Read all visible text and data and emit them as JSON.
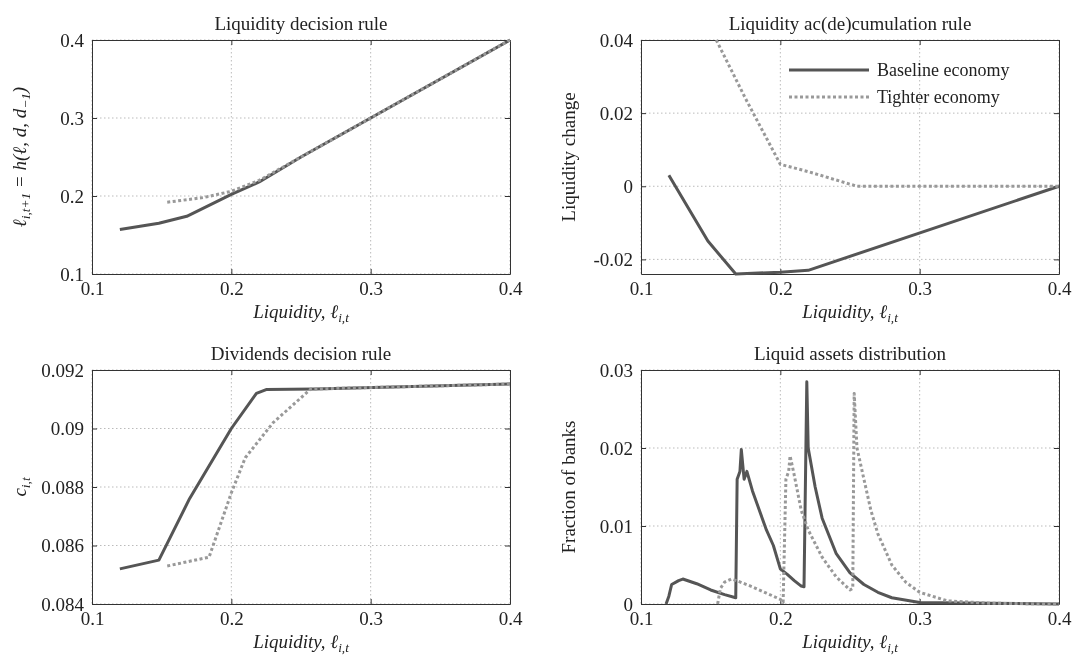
{
  "chart_data": [
    {
      "type": "line",
      "title": "Liquidity decision rule",
      "xlabel": "Liquidity, ℓ$_{i,t}$",
      "ylabel": "ℓ$_{i,t+1}$ = h(ℓ, d, d$_{−1}$)",
      "xlim": [
        0.1,
        0.4
      ],
      "xticks": [
        0.1,
        0.2,
        0.3,
        0.4
      ],
      "ylim": [
        0.1,
        0.4
      ],
      "yticks": [
        0.1,
        0.2,
        0.3,
        0.4
      ],
      "grid": true,
      "legend": false,
      "series": [
        {
          "color": "#555555",
          "line_style": "solid",
          "x": [
            0.12,
            0.148,
            0.168,
            0.2,
            0.22,
            0.25,
            0.3,
            0.4
          ],
          "values": [
            0.157,
            0.165,
            0.174,
            0.202,
            0.218,
            0.25,
            0.3,
            0.4
          ]
        },
        {
          "color": "#999999",
          "line_style": "dotted",
          "x": [
            0.154,
            0.18,
            0.2,
            0.22,
            0.25,
            0.4
          ],
          "values": [
            0.192,
            0.198,
            0.206,
            0.22,
            0.25,
            0.4
          ]
        }
      ]
    },
    {
      "type": "line",
      "title": "Liquidity ac(de)cumulation rule",
      "xlabel": "Liquidity, ℓ$_{i,t}$",
      "ylabel": "Liquidity change",
      "xlim": [
        0.1,
        0.4
      ],
      "xticks": [
        0.1,
        0.2,
        0.3,
        0.4
      ],
      "ylim": [
        -0.024,
        0.04
      ],
      "yticks": [
        -0.02,
        0,
        0.02,
        0.04
      ],
      "grid": true,
      "legend": "top right",
      "series": [
        {
          "name": "Baseline economy",
          "color": "#555555",
          "line_style": "solid",
          "x": [
            0.12,
            0.148,
            0.168,
            0.2,
            0.22,
            0.4
          ],
          "values": [
            0.003,
            -0.015,
            -0.024,
            -0.0235,
            -0.023,
            0
          ]
        },
        {
          "name": "Tighter economy",
          "color": "#999999",
          "line_style": "dotted",
          "x": [
            0.154,
            0.175,
            0.2,
            0.22,
            0.255,
            0.4
          ],
          "values": [
            0.04,
            0.024,
            0.006,
            0.004,
            0,
            0
          ]
        }
      ]
    },
    {
      "type": "line",
      "title": "Dividends decision rule",
      "xlabel": "Liquidity, ℓ$_{i,t}$",
      "ylabel": "c$_{i,t}$",
      "xlim": [
        0.1,
        0.4
      ],
      "xticks": [
        0.1,
        0.2,
        0.3,
        0.4
      ],
      "ylim": [
        0.084,
        0.092
      ],
      "yticks": [
        0.084,
        0.086,
        0.088,
        0.09,
        0.092
      ],
      "grid": true,
      "legend": false,
      "series": [
        {
          "color": "#555555",
          "line_style": "solid",
          "x": [
            0.12,
            0.148,
            0.17,
            0.2,
            0.218,
            0.225,
            0.26,
            0.4
          ],
          "values": [
            0.0852,
            0.0855,
            0.0876,
            0.09,
            0.0912,
            0.09133,
            0.09135,
            0.09152
          ]
        },
        {
          "color": "#999999",
          "line_style": "dotted",
          "x": [
            0.154,
            0.184,
            0.2,
            0.21,
            0.23,
            0.257,
            0.4
          ],
          "values": [
            0.0853,
            0.0856,
            0.0878,
            0.089,
            0.0902,
            0.09135,
            0.09152
          ]
        }
      ]
    },
    {
      "type": "line",
      "title": "Liquid assets distribution",
      "xlabel": "Liquidity, ℓ$_{i,t}$",
      "ylabel": "Fraction of banks",
      "xlim": [
        0.1,
        0.4
      ],
      "xticks": [
        0.1,
        0.2,
        0.3,
        0.4
      ],
      "ylim": [
        0,
        0.03
      ],
      "yticks": [
        0,
        0.01,
        0.02,
        0.03
      ],
      "grid": true,
      "legend": false,
      "series": [
        {
          "color": "#555555",
          "line_style": "solid",
          "x": [
            0.118,
            0.12,
            0.122,
            0.127,
            0.13,
            0.14,
            0.15,
            0.16,
            0.168,
            0.169,
            0.171,
            0.172,
            0.174,
            0.176,
            0.18,
            0.185,
            0.19,
            0.195,
            0.2,
            0.205,
            0.21,
            0.215,
            0.217,
            0.219,
            0.22,
            0.225,
            0.23,
            0.24,
            0.25,
            0.26,
            0.27,
            0.28,
            0.3,
            0.35,
            0.4
          ],
          "values": [
            0,
            0.001,
            0.0025,
            0.003,
            0.0032,
            0.0026,
            0.0018,
            0.0012,
            0.0008,
            0.016,
            0.017,
            0.0198,
            0.016,
            0.017,
            0.0145,
            0.012,
            0.0095,
            0.0075,
            0.0045,
            0.0038,
            0.003,
            0.0023,
            0.0022,
            0.0285,
            0.02,
            0.015,
            0.011,
            0.0065,
            0.004,
            0.0025,
            0.0015,
            0.0008,
            0.0002,
            0.0001,
            0
          ]
        },
        {
          "color": "#999999",
          "line_style": "dotted",
          "x": [
            0.155,
            0.157,
            0.16,
            0.165,
            0.17,
            0.18,
            0.19,
            0.2,
            0.202,
            0.204,
            0.206,
            0.207,
            0.21,
            0.215,
            0.22,
            0.23,
            0.24,
            0.25,
            0.252,
            0.253,
            0.255,
            0.26,
            0.265,
            0.27,
            0.28,
            0.29,
            0.3,
            0.32,
            0.35,
            0.4
          ],
          "values": [
            0,
            0.002,
            0.0028,
            0.0032,
            0.0029,
            0.0022,
            0.0014,
            0.0006,
            0.0002,
            0.016,
            0.017,
            0.019,
            0.0165,
            0.012,
            0.0095,
            0.006,
            0.0035,
            0.0018,
            0.002,
            0.027,
            0.02,
            0.016,
            0.012,
            0.009,
            0.005,
            0.0028,
            0.0015,
            0.0004,
            0.0001,
            0
          ]
        }
      ]
    }
  ]
}
